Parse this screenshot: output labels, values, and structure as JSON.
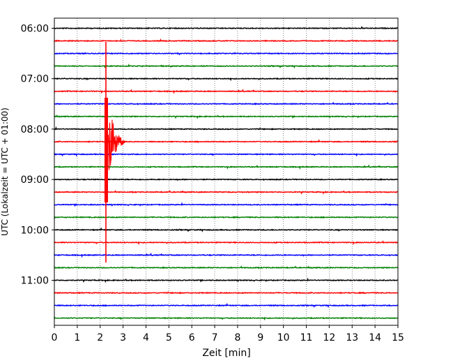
{
  "chart_data": {
    "type": "line",
    "title": "",
    "xlabel": "Zeit  [min]",
    "ylabel": "UTC (Lokalzeit = UTC + 01:00)",
    "xlim": [
      0,
      15
    ],
    "x_ticks": [
      0,
      1,
      2,
      3,
      4,
      5,
      6,
      7,
      8,
      9,
      10,
      11,
      12,
      13,
      14,
      15
    ],
    "x_tick_labels": [
      "0",
      "1",
      "2",
      "3",
      "4",
      "5",
      "6",
      "7",
      "8",
      "9",
      "10",
      "11",
      "12",
      "13",
      "14",
      "15"
    ],
    "grid": "vertical dotted at each minute",
    "start_time_labels": [
      "06:00",
      "07:00",
      "08:00",
      "09:00",
      "10:00",
      "11:00"
    ],
    "trace_colors": [
      "#000000",
      "#ff0000",
      "#0000ff",
      "#008000"
    ],
    "trace_count": 24,
    "minutes_per_trace": 15,
    "event": {
      "trace_start": "08:15",
      "onset_minute": 2.25,
      "coda_end_minute": 3.1,
      "color": "#ff0000"
    }
  }
}
